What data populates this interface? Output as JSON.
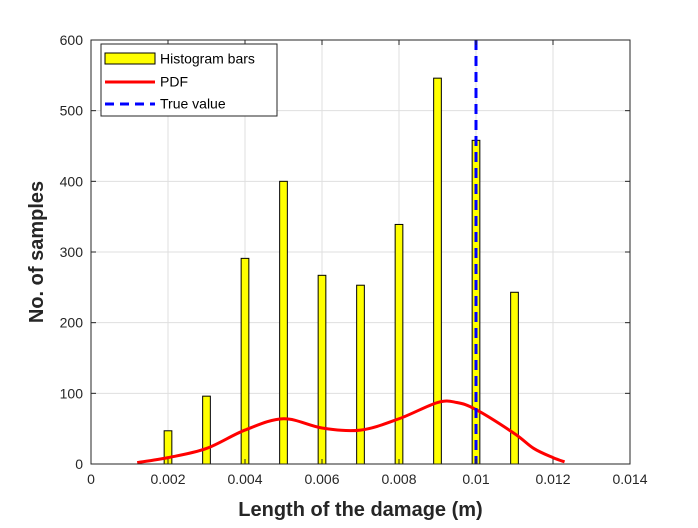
{
  "chart_data": {
    "type": "bar",
    "title": "",
    "xlabel": "Length of the damage (m)",
    "ylabel": "No. of samples",
    "xlim": [
      0,
      0.014
    ],
    "ylim": [
      0,
      600
    ],
    "xticks": [
      0,
      0.002,
      0.004,
      0.006,
      0.008,
      0.01,
      0.012,
      0.014
    ],
    "xtick_labels": [
      "0",
      "0.002",
      "0.004",
      "0.006",
      "0.008",
      "0.01",
      "0.012",
      "0.014"
    ],
    "yticks": [
      0,
      100,
      200,
      300,
      400,
      500,
      600
    ],
    "ytick_labels": [
      "0",
      "100",
      "200",
      "300",
      "400",
      "500",
      "600"
    ],
    "grid": true,
    "legend_position": "top-left",
    "series": [
      {
        "name": "Histogram bars",
        "type": "bar",
        "color": "#ffff00",
        "edge_color": "#000000",
        "bar_width": 0.0002,
        "x": [
          0.002,
          0.003,
          0.004,
          0.005,
          0.006,
          0.007,
          0.008,
          0.009,
          0.01,
          0.011
        ],
        "values": [
          47,
          96,
          291,
          400,
          267,
          253,
          339,
          546,
          458,
          243
        ]
      },
      {
        "name": "PDF",
        "type": "line",
        "color": "#ff0000",
        "x": [
          0.0012,
          0.002,
          0.003,
          0.004,
          0.005,
          0.006,
          0.007,
          0.008,
          0.009,
          0.0095,
          0.01,
          0.011,
          0.0115,
          0.012,
          0.0123
        ],
        "values": [
          2,
          9,
          22,
          48,
          64,
          51,
          48,
          64,
          87,
          87,
          77,
          43,
          22,
          9,
          3
        ]
      },
      {
        "name": "True value",
        "type": "vline",
        "color": "#0000ff",
        "x": 0.01
      }
    ]
  }
}
